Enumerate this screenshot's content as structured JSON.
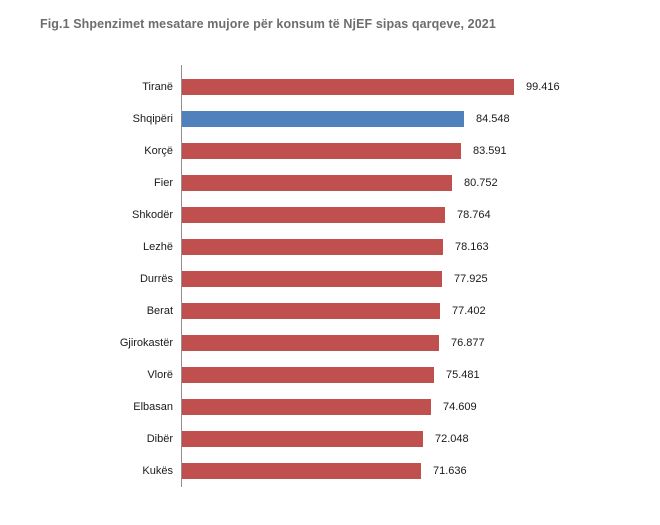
{
  "title": "Fig.1 Shpenzimet mesatare mujore për konsum të NjEF sipas qarqeve, 2021",
  "colors": {
    "bar_default": "#c0504d",
    "bar_highlight": "#4f81bd",
    "axis": "#909090",
    "title_text": "#6d6d70",
    "label_text": "#1a1a1a"
  },
  "chart_data": {
    "type": "bar",
    "orientation": "horizontal",
    "title": "Fig.1 Shpenzimet mesatare mujore për konsum të NjEF sipas qarqeve, 2021",
    "categories": [
      "Tiranë",
      "Shqipëri",
      "Korçë",
      "Fier",
      "Shkodër",
      "Lezhë",
      "Durrës",
      "Berat",
      "Gjirokastër",
      "Vlorë",
      "Elbasan",
      "Dibër",
      "Kukës"
    ],
    "values": [
      99416,
      84548,
      83591,
      80752,
      78764,
      78163,
      77925,
      77402,
      76877,
      75481,
      74609,
      72048,
      71636
    ],
    "value_labels": [
      "99.416",
      "84.548",
      "83.591",
      "80.752",
      "78.764",
      "78.163",
      "77.925",
      "77.402",
      "76.877",
      "75.481",
      "74.609",
      "72.048",
      "71.636"
    ],
    "highlight_index": 1,
    "highlight_category": "Shqipëri",
    "xlim": [
      0,
      105000
    ],
    "xlabel": "",
    "ylabel": "",
    "grid": false,
    "legend": false,
    "value_labels_position": "end-of-bar"
  }
}
